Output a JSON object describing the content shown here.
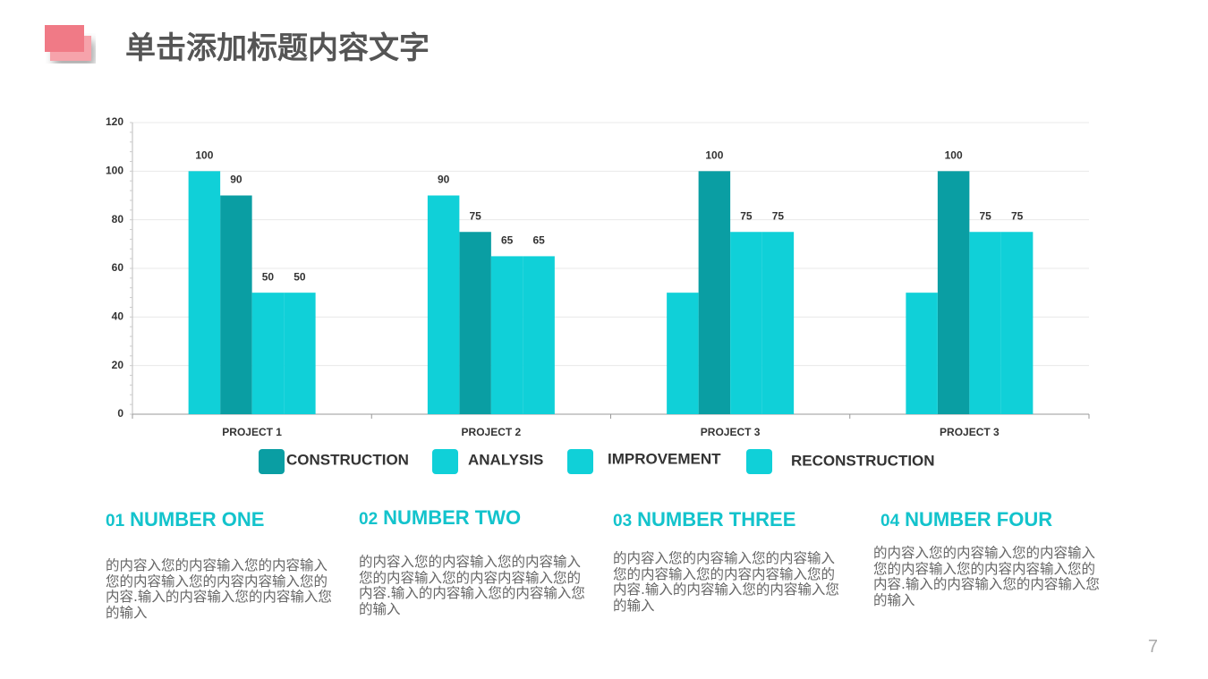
{
  "title": "单击添加标题内容文字",
  "page_number": "7",
  "chart_data": {
    "type": "bar",
    "categories": [
      "PROJECT 1",
      "PROJECT 2",
      "PROJECT 3",
      "PROJECT 3"
    ],
    "series": [
      {
        "name": "CONSTRUCTION",
        "color": "#0a9ea3",
        "values": [
          90,
          75,
          100,
          100
        ],
        "value_labels": [
          "90",
          "75",
          "100",
          "100"
        ]
      },
      {
        "name": "ANALYSIS",
        "color": "#10d0d8",
        "values": [
          100,
          90,
          50,
          50
        ],
        "value_labels": [
          "100",
          "90",
          null,
          null
        ]
      },
      {
        "name": "IMPROVEMENT",
        "color": "#10d0d8",
        "values": [
          50,
          65,
          75,
          75
        ],
        "value_labels": [
          "50",
          "65",
          "75",
          "75"
        ]
      },
      {
        "name": "RECONSTRUCTION",
        "color": "#10d0d8",
        "values": [
          50,
          65,
          75,
          75
        ],
        "value_labels": [
          "50",
          "65",
          "75",
          "75"
        ]
      }
    ],
    "ylim": [
      0,
      120
    ],
    "yticks": [
      0,
      20,
      40,
      60,
      80,
      100,
      120
    ],
    "grid": true
  },
  "sections": [
    {
      "number": "01",
      "heading": "NUMBER ONE",
      "body": "的内容入您的内容输入您的内容输入您的内容输入您的内容内容输入您的内容.输入的内容输入您的内容输入您的输入"
    },
    {
      "number": "02",
      "heading": "NUMBER TWO",
      "body": "的内容入您的内容输入您的内容输入您的内容输入您的内容内容输入您的内容.输入的内容输入您的内容输入您的输入"
    },
    {
      "number": "03",
      "heading": "NUMBER THREE",
      "body": "的内容入您的内容输入您的内容输入您的内容输入您的内容内容输入您的内容.输入的内容输入您的内容输入您的输入"
    },
    {
      "number": "04",
      "heading": "NUMBER FOUR",
      "body": "的内容入您的内容输入您的内容输入您的内容输入您的内容内容输入您的内容.输入的内容输入您的内容输入您的输入"
    }
  ]
}
